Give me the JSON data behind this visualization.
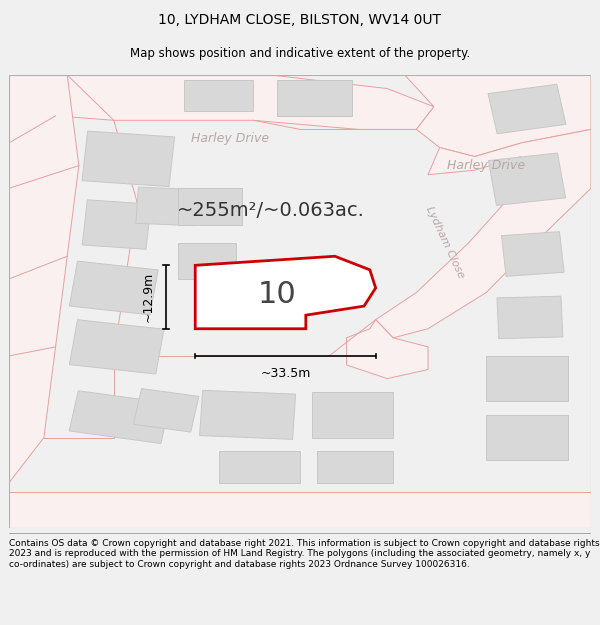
{
  "title": "10, LYDHAM CLOSE, BILSTON, WV14 0UT",
  "subtitle": "Map shows position and indicative extent of the property.",
  "footer": "Contains OS data © Crown copyright and database right 2021. This information is subject to Crown copyright and database rights 2023 and is reproduced with the permission of HM Land Registry. The polygons (including the associated geometry, namely x, y co-ordinates) are subject to Crown copyright and database rights 2023 Ordnance Survey 100026316.",
  "area_text": "~255m²/~0.063ac.",
  "label_number": "10",
  "dim_width": "~33.5m",
  "dim_height": "~12.9m",
  "map_bg": "#ffffff",
  "outer_bg": "#f0f0f0",
  "road_fill": "#f5f5f5",
  "road_line": "#e8a0a0",
  "building_fill": "#d8d8d8",
  "building_stroke": "#c8c8c8",
  "highlight_fill": "#ffffff",
  "highlight_stroke": "#cc0000",
  "title_fontsize": 10,
  "subtitle_fontsize": 8.5,
  "footer_fontsize": 6.5,
  "road_label_color": "#b8a8a8",
  "dim_color": "#000000",
  "area_fontsize": 14,
  "label_fontsize": 22
}
